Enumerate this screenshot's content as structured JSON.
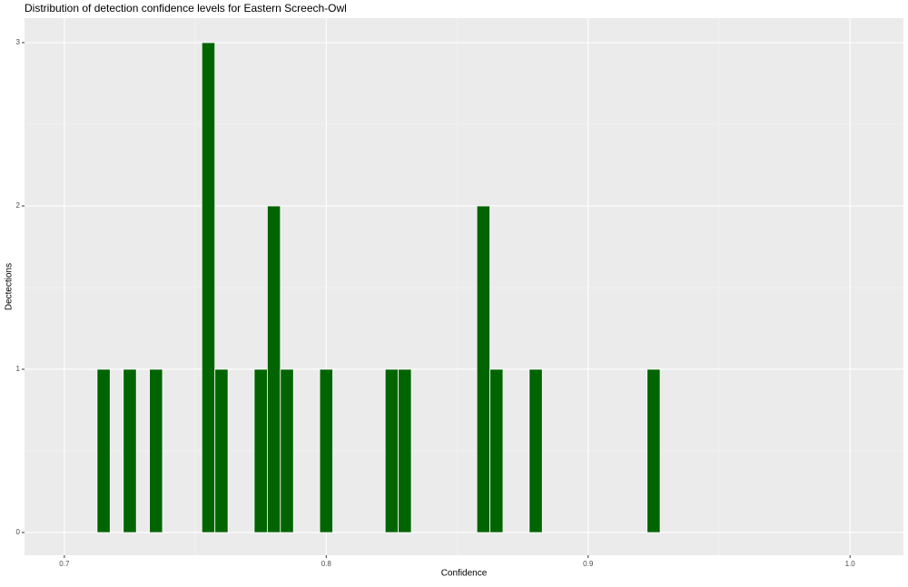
{
  "chart_data": {
    "type": "histogram",
    "title": "Distribution of detection confidence levels for Eastern Screech-Owl",
    "x_label": "Confidence",
    "y_label": "Dectections",
    "bins": [
      0.7125,
      0.7175,
      0.7225,
      0.7275,
      0.7325,
      0.7375,
      0.7425,
      0.7475,
      0.7525,
      0.7575,
      0.7625,
      0.7675,
      0.7725,
      0.7775,
      0.7825,
      0.7875,
      0.7925,
      0.7975,
      0.8025,
      0.8075,
      0.8125,
      0.8175,
      0.8225,
      0.8275,
      0.8325,
      0.8375,
      0.8425,
      0.8475,
      0.8525,
      0.8575,
      0.8625,
      0.8675,
      0.8725,
      0.8775,
      0.8825,
      0.8875,
      0.8925,
      0.8975,
      0.9025,
      0.9075,
      0.9125,
      0.9175,
      0.9225,
      0.9275
    ],
    "values": [
      1,
      0,
      1,
      0,
      1,
      0,
      0,
      0,
      3,
      1,
      0,
      0,
      1,
      2,
      1,
      0,
      0,
      1,
      0,
      0,
      0,
      0,
      1,
      1,
      0,
      0,
      0,
      0,
      0,
      2,
      1,
      0,
      0,
      1,
      0,
      0,
      0,
      0,
      0,
      0,
      0,
      0,
      1
    ],
    "color": "#006400",
    "xlim": [
      0.6848,
      1.0204
    ],
    "ylim": [
      -0.139,
      3.15
    ],
    "xticks": [
      0.7,
      0.8,
      0.9,
      {
        "value": 1,
        "label": "1.0"
      }
    ],
    "yticks": [
      0,
      1,
      2,
      3
    ],
    "minor_xticks": [
      0.75,
      0.85,
      0.95
    ],
    "minor_yticks": [
      0.5,
      1.5,
      2.5
    ],
    "grid": true
  }
}
